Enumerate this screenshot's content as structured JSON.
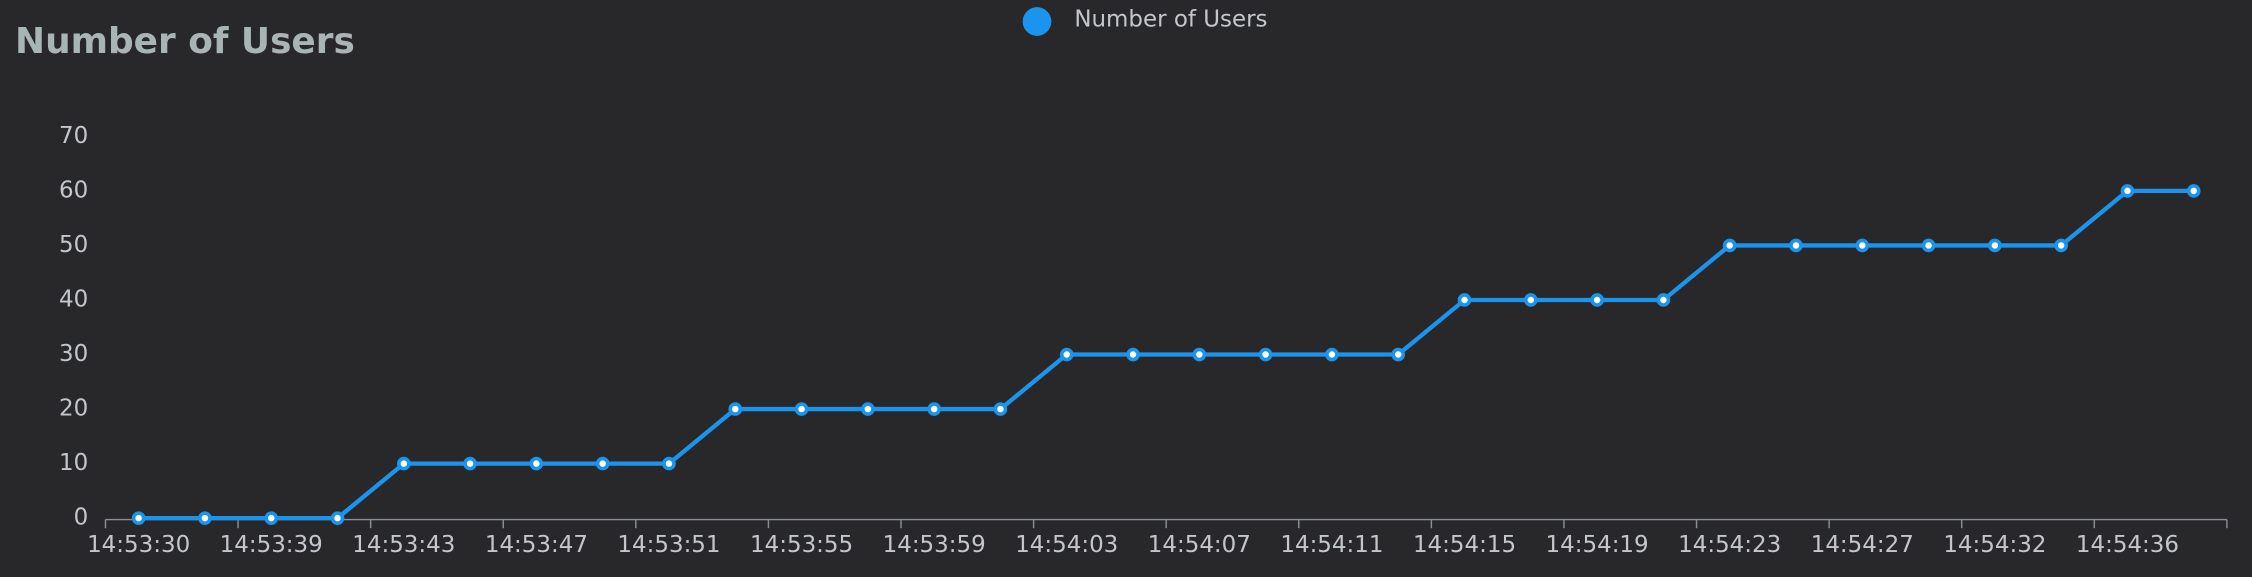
{
  "chart_data": {
    "type": "line",
    "title": "Number of Users",
    "categories": [
      "14:53:30",
      null,
      "14:53:39",
      null,
      "14:53:43",
      null,
      "14:53:47",
      null,
      "14:53:51",
      null,
      "14:53:55",
      null,
      "14:53:59",
      null,
      "14:54:03",
      null,
      "14:54:07",
      null,
      "14:54:11",
      null,
      "14:54:15",
      null,
      "14:54:19",
      null,
      "14:54:23",
      null,
      "14:54:27",
      null,
      "14:54:32",
      null,
      "14:54:36",
      null
    ],
    "series": [
      {
        "name": "Number of Users",
        "color": "#1a94ec",
        "values": [
          0,
          0,
          0,
          0,
          10,
          10,
          10,
          10,
          10,
          20,
          20,
          20,
          20,
          20,
          30,
          30,
          30,
          30,
          30,
          30,
          40,
          40,
          40,
          40,
          50,
          50,
          50,
          50,
          50,
          50,
          60,
          60
        ]
      }
    ],
    "ylim": [
      0,
      70
    ],
    "yticks": [
      0,
      10,
      20,
      30,
      40,
      50,
      60,
      70
    ],
    "legend": "top"
  }
}
